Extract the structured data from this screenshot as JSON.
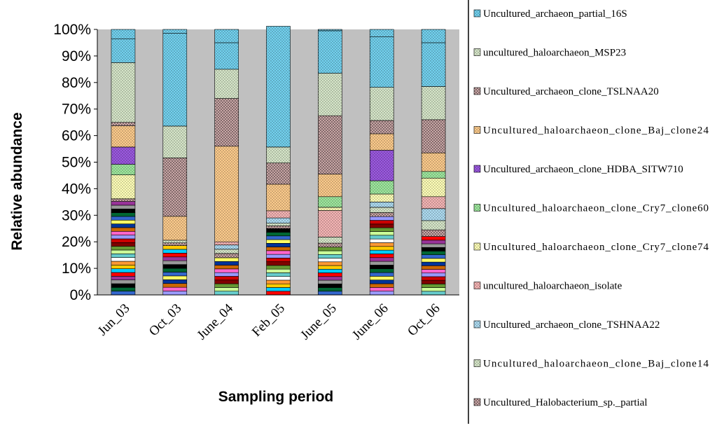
{
  "chart_data": {
    "type": "bar",
    "stacked": true,
    "percent": true,
    "title": "",
    "xlabel": "Sampling period",
    "ylabel": "Relative abundance",
    "ylim": [
      0,
      100
    ],
    "yticks": [
      "0%",
      "10%",
      "20%",
      "30%",
      "40%",
      "50%",
      "60%",
      "70%",
      "80%",
      "90%",
      "100%"
    ],
    "grid": false,
    "legend_position": "right",
    "categories": [
      "Jun_03",
      "Oct_03",
      "June_04",
      "Feb_05",
      "June_05",
      "June_06",
      "Oct_06"
    ],
    "other_segments_note": "Many minor unlabeled taxa (not in legend) are stacked below the listed series in each bar.",
    "other_minor_total": [
      35.2,
      18.6,
      14.0,
      25.0,
      18.0,
      29.5,
      22.0
    ],
    "series": [
      {
        "name": "Uncultured_Halobacterium_sp._partial",
        "values": [
          1.0,
          1.0,
          1.6,
          1.0,
          1.5,
          1.5,
          2.5
        ]
      },
      {
        "name": "Uncultured_haloarchaeon_clone_Baj_clone14",
        "values": [
          0,
          1.0,
          1.6,
          1.0,
          2.3,
          2.0,
          3.5
        ]
      },
      {
        "name": "Uncultured_archaeon_clone_TSHNAA22",
        "values": [
          0,
          0,
          1.6,
          2.0,
          0,
          2.0,
          4.5
        ]
      },
      {
        "name": "uncultured_haloarchaeon_isolate",
        "values": [
          0,
          0,
          1.2,
          2.7,
          10.0,
          0,
          4.5
        ]
      },
      {
        "name": "Uncultured_haloarchaeon_clone_Cry7_clone74",
        "values": [
          9.0,
          0,
          0,
          0,
          1.2,
          3.0,
          7.0
        ]
      },
      {
        "name": "Uncultured_haloarchaeon_clone_Cry7_clone60",
        "values": [
          4.0,
          0,
          0,
          0,
          4.0,
          5.0,
          2.5
        ]
      },
      {
        "name": "Uncultured_archaeon_clone_HDBA_SITW710",
        "values": [
          6.5,
          0,
          0,
          0,
          0,
          11.5,
          0
        ]
      },
      {
        "name": "Uncultured_haloarchaeon_clone_Baj_clone24",
        "values": [
          8.0,
          9.0,
          36.0,
          10.0,
          8.5,
          6.2,
          7.0
        ]
      },
      {
        "name": "Uncultured_archaeon_clone_TSLNAA20",
        "values": [
          1.3,
          22.0,
          18.0,
          8.0,
          22.0,
          5.0,
          12.5
        ]
      },
      {
        "name": "uncultured_haloarchaeon_MSP23",
        "values": [
          22.5,
          12.0,
          11.0,
          6.0,
          16.0,
          12.5,
          12.5
        ]
      },
      {
        "name": "Uncultured_archaeon_partial_16S",
        "values": [
          9.0,
          35.0,
          10.0,
          45.5,
          16.0,
          19.0,
          16.5
        ]
      }
    ]
  }
}
